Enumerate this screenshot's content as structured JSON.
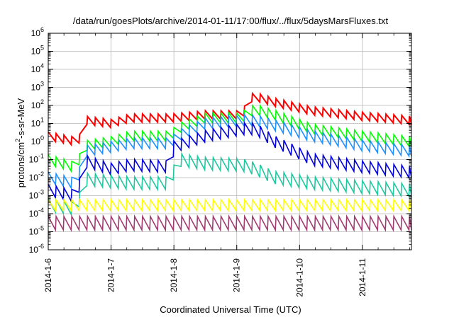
{
  "chart_data": {
    "type": "line",
    "title": "/data/run/goesPlots/archive/2014-01-11/17:00/flux/../flux/5daysMarsFluxes.txt",
    "xlabel": "Coordinated Universal Time (UTC)",
    "ylabel_parts": [
      "protons/cm",
      "2",
      "-s-sr-MeV"
    ],
    "x_ticks": [
      "2014-1-6",
      "2014-1-7",
      "2014-1-8",
      "2014-1-9",
      "2014-1-10",
      "2014-1-11"
    ],
    "xlim": [
      0,
      5.78
    ],
    "ylim": [
      1e-06,
      1000000.0
    ],
    "y_scale": "log",
    "y_ticks": [
      {
        "base": "10",
        "exp": "-6"
      },
      {
        "base": "10",
        "exp": "-5"
      },
      {
        "base": "10",
        "exp": "-4"
      },
      {
        "base": "10",
        "exp": "-3"
      },
      {
        "base": "10",
        "exp": "-2"
      },
      {
        "base": "10",
        "exp": "-1"
      },
      {
        "base": "10",
        "exp": "0"
      },
      {
        "base": "10",
        "exp": "1"
      },
      {
        "base": "10",
        "exp": "2"
      },
      {
        "base": "10",
        "exp": "3"
      },
      {
        "base": "10",
        "exp": "4"
      },
      {
        "base": "10",
        "exp": "5"
      },
      {
        "base": "10",
        "exp": "6"
      }
    ],
    "grid": true,
    "series": [
      {
        "color": "#ff0000",
        "width": 2.0,
        "amp": 0.45,
        "points": [
          [
            0,
            2.0
          ],
          [
            0.45,
            1.0
          ],
          [
            0.5,
            1.5
          ],
          [
            0.6,
            15
          ],
          [
            1.0,
            10
          ],
          [
            1.3,
            20
          ],
          [
            1.5,
            20
          ],
          [
            1.95,
            20
          ],
          [
            2.5,
            30
          ],
          [
            3.1,
            30
          ],
          [
            3.15,
            100
          ],
          [
            3.2,
            250
          ],
          [
            3.3,
            300
          ],
          [
            3.6,
            150
          ],
          [
            4.2,
            50
          ],
          [
            5.0,
            25
          ],
          [
            5.78,
            15
          ]
        ]
      },
      {
        "color": "#00ff00",
        "width": 1.6,
        "amp": 0.55,
        "points": [
          [
            0,
            0.1
          ],
          [
            0.4,
            0.04
          ],
          [
            0.45,
            0.05
          ],
          [
            0.6,
            0.6
          ],
          [
            1.0,
            1.0
          ],
          [
            1.3,
            2.0
          ],
          [
            1.95,
            2.0
          ],
          [
            2.05,
            5
          ],
          [
            2.5,
            20
          ],
          [
            3.1,
            20
          ],
          [
            3.15,
            40
          ],
          [
            3.3,
            60
          ],
          [
            3.6,
            30
          ],
          [
            4.2,
            5
          ],
          [
            5.0,
            2.0
          ],
          [
            5.78,
            1.0
          ]
        ]
      },
      {
        "color": "#1e90ff",
        "width": 1.6,
        "amp": 0.6,
        "points": [
          [
            0,
            0.01
          ],
          [
            0.4,
            0.005
          ],
          [
            0.45,
            0.005
          ],
          [
            0.6,
            0.3
          ],
          [
            1.0,
            0.5
          ],
          [
            1.3,
            0.8
          ],
          [
            1.95,
            0.8
          ],
          [
            2.05,
            2
          ],
          [
            2.5,
            10
          ],
          [
            3.1,
            15
          ],
          [
            3.3,
            15
          ],
          [
            3.6,
            8
          ],
          [
            4.2,
            2
          ],
          [
            5.0,
            0.6
          ],
          [
            5.78,
            0.3
          ]
        ]
      },
      {
        "color": "#0000dd",
        "width": 1.6,
        "amp": 0.65,
        "points": [
          [
            0,
            0.002
          ],
          [
            0.4,
            0.001
          ],
          [
            0.45,
            0.001
          ],
          [
            0.6,
            0.08
          ],
          [
            1.0,
            0.03
          ],
          [
            1.3,
            0.05
          ],
          [
            1.95,
            0.04
          ],
          [
            2.0,
            0.5
          ],
          [
            2.5,
            2
          ],
          [
            3.1,
            5
          ],
          [
            3.3,
            5
          ],
          [
            3.6,
            1
          ],
          [
            4.2,
            0.1
          ],
          [
            5.0,
            0.04
          ],
          [
            5.78,
            0.02
          ]
        ]
      },
      {
        "color": "#20c8a0",
        "width": 1.6,
        "amp": 0.7,
        "points": [
          [
            0,
            0.0003
          ],
          [
            0.4,
            0.0002
          ],
          [
            0.45,
            0.0002
          ],
          [
            0.6,
            0.008
          ],
          [
            1.0,
            0.006
          ],
          [
            1.3,
            0.005
          ],
          [
            1.95,
            0.005
          ],
          [
            2.05,
            0.1
          ],
          [
            2.5,
            0.06
          ],
          [
            3.1,
            0.05
          ],
          [
            3.3,
            0.03
          ],
          [
            3.6,
            0.01
          ],
          [
            4.2,
            0.005
          ],
          [
            5.0,
            0.003
          ],
          [
            5.78,
            0.002
          ]
        ]
      },
      {
        "color": "#ffff00",
        "width": 1.6,
        "amp": 0.6,
        "points": [
          [
            0,
            0.0003
          ],
          [
            1.0,
            0.0003
          ],
          [
            2.0,
            0.0003
          ],
          [
            3.0,
            0.0003
          ],
          [
            4.0,
            0.0003
          ],
          [
            5.0,
            0.0003
          ],
          [
            5.78,
            0.0003
          ]
        ]
      },
      {
        "color": "#a03c70",
        "width": 1.6,
        "amp": 0.75,
        "points": [
          [
            0,
            3e-05
          ],
          [
            1.0,
            3e-05
          ],
          [
            2.0,
            3e-05
          ],
          [
            3.0,
            3e-05
          ],
          [
            4.0,
            3e-05
          ],
          [
            5.0,
            3e-05
          ],
          [
            5.78,
            3e-05
          ]
        ]
      }
    ]
  }
}
